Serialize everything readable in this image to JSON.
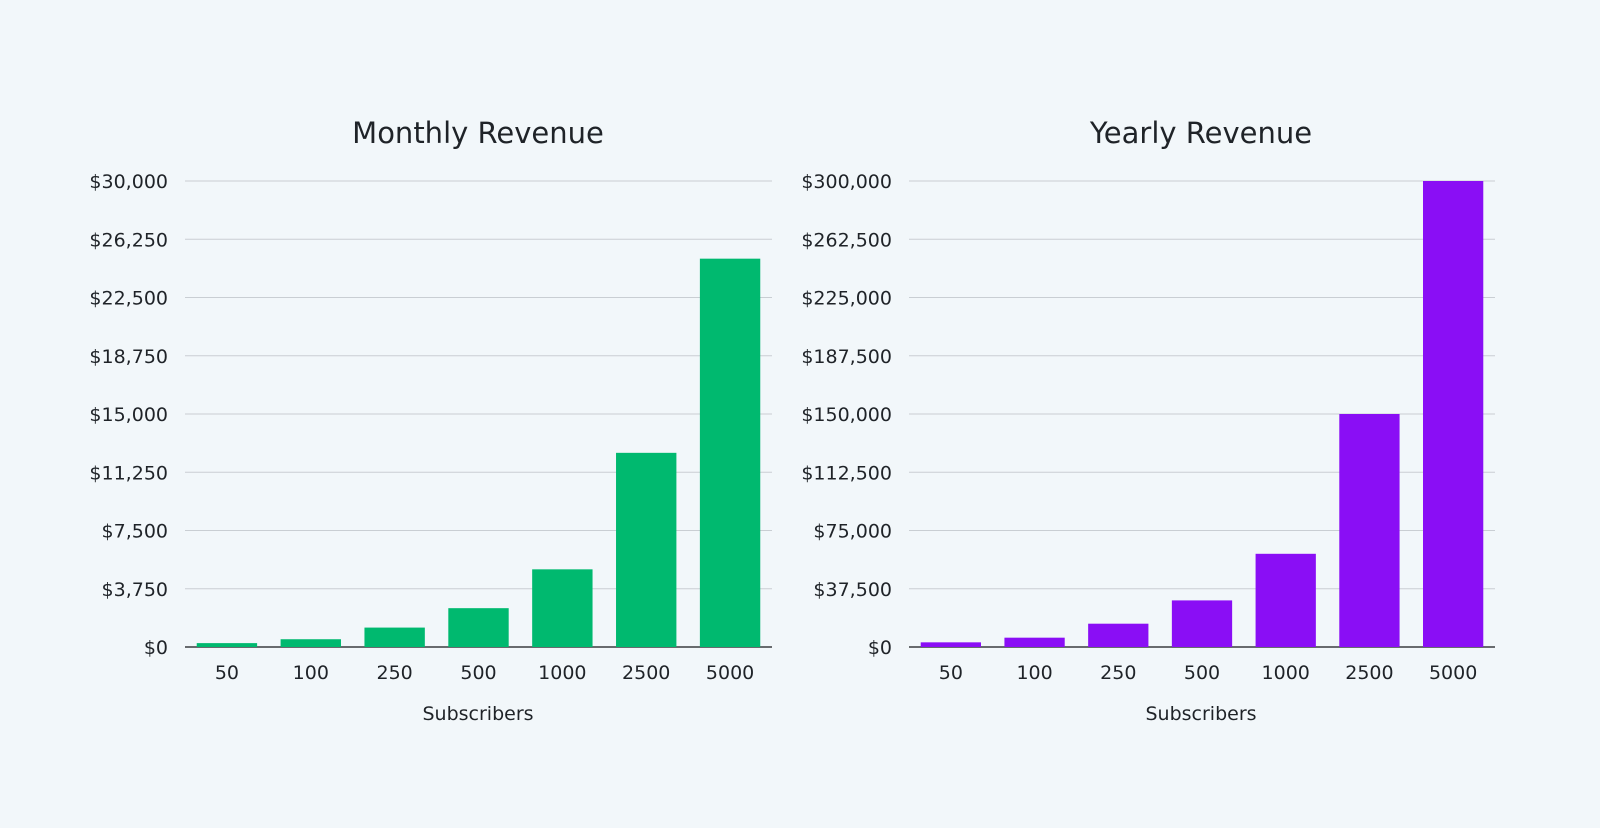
{
  "chart_data": [
    {
      "type": "bar",
      "title": "Monthly Revenue",
      "xlabel": "Subscribers",
      "ylabel": "",
      "categories": [
        "50",
        "100",
        "250",
        "500",
        "1000",
        "2500",
        "5000"
      ],
      "values": [
        250,
        500,
        1250,
        2500,
        5000,
        12500,
        25000
      ],
      "ylim": [
        0,
        30000
      ],
      "yticks": [
        0,
        3750,
        7500,
        11250,
        15000,
        18750,
        22500,
        26250,
        30000
      ],
      "ytick_labels": [
        "$0",
        "$3,750",
        "$7,500",
        "$11,250",
        "$15,000",
        "$18,750",
        "$22,500",
        "$26,250",
        "$30,000"
      ],
      "color": "#00b96f",
      "grid": true,
      "legend": "none"
    },
    {
      "type": "bar",
      "title": "Yearly Revenue",
      "xlabel": "Subscribers",
      "ylabel": "",
      "categories": [
        "50",
        "100",
        "250",
        "500",
        "1000",
        "2500",
        "5000"
      ],
      "values": [
        3000,
        6000,
        15000,
        30000,
        60000,
        150000,
        300000
      ],
      "ylim": [
        0,
        300000
      ],
      "yticks": [
        0,
        37500,
        75000,
        112500,
        150000,
        187500,
        225000,
        262500,
        300000
      ],
      "ytick_labels": [
        "$0",
        "$37,500",
        "$75,000",
        "$112,500",
        "$150,000",
        "$187,500",
        "$225,000",
        "$262,500",
        "$300,000"
      ],
      "color": "#8a0ef5",
      "grid": true,
      "legend": "none"
    }
  ]
}
